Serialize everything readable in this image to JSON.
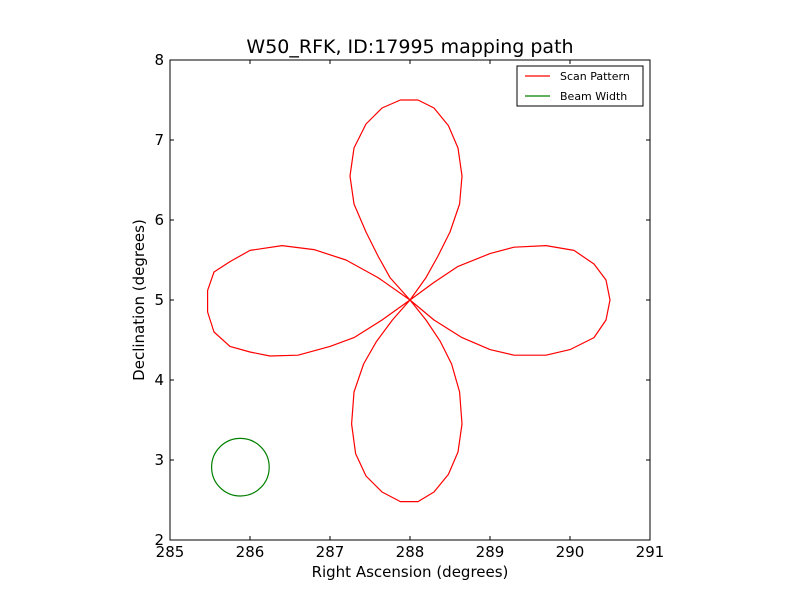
{
  "chart_data": {
    "type": "line",
    "title": "W50_RFK, ID:17995 mapping path",
    "xlabel": "Right Ascension (degrees)",
    "ylabel": "Declination (degrees)",
    "xlim": [
      285,
      291
    ],
    "ylim": [
      2,
      8
    ],
    "x_ticks": [
      "285",
      "286",
      "287",
      "288",
      "289",
      "290",
      "291"
    ],
    "y_ticks": [
      "2",
      "3",
      "4",
      "5",
      "6",
      "7",
      "8"
    ],
    "legend_position": "top-right",
    "legend": [
      {
        "label": "Scan Pattern",
        "color": "#ff0000"
      },
      {
        "label": "Beam Width",
        "color": "#008000"
      }
    ],
    "series": [
      {
        "name": "Scan Pattern",
        "color": "#ff0000",
        "points": [
          [
            288.0,
            5.0
          ],
          [
            287.75,
            5.28
          ],
          [
            287.6,
            5.55
          ],
          [
            287.45,
            5.85
          ],
          [
            287.3,
            6.2
          ],
          [
            287.25,
            6.55
          ],
          [
            287.3,
            6.9
          ],
          [
            287.45,
            7.2
          ],
          [
            287.65,
            7.4
          ],
          [
            287.88,
            7.5
          ],
          [
            288.1,
            7.5
          ],
          [
            288.3,
            7.4
          ],
          [
            288.48,
            7.18
          ],
          [
            288.6,
            6.9
          ],
          [
            288.65,
            6.55
          ],
          [
            288.62,
            6.2
          ],
          [
            288.5,
            5.85
          ],
          [
            288.35,
            5.55
          ],
          [
            288.2,
            5.28
          ],
          [
            288.0,
            5.0
          ],
          [
            288.3,
            5.22
          ],
          [
            288.6,
            5.42
          ],
          [
            289.0,
            5.58
          ],
          [
            289.3,
            5.66
          ],
          [
            289.7,
            5.68
          ],
          [
            290.05,
            5.62
          ],
          [
            290.3,
            5.45
          ],
          [
            290.45,
            5.25
          ],
          [
            290.5,
            5.0
          ],
          [
            290.45,
            4.75
          ],
          [
            290.3,
            4.53
          ],
          [
            290.0,
            4.38
          ],
          [
            289.7,
            4.31
          ],
          [
            289.3,
            4.31
          ],
          [
            289.0,
            4.38
          ],
          [
            288.65,
            4.53
          ],
          [
            288.3,
            4.75
          ],
          [
            288.0,
            5.0
          ],
          [
            288.2,
            4.75
          ],
          [
            288.38,
            4.48
          ],
          [
            288.52,
            4.2
          ],
          [
            288.62,
            3.85
          ],
          [
            288.65,
            3.45
          ],
          [
            288.6,
            3.1
          ],
          [
            288.48,
            2.82
          ],
          [
            288.3,
            2.6
          ],
          [
            288.1,
            2.48
          ],
          [
            287.88,
            2.48
          ],
          [
            287.65,
            2.6
          ],
          [
            287.45,
            2.8
          ],
          [
            287.32,
            3.08
          ],
          [
            287.27,
            3.45
          ],
          [
            287.3,
            3.85
          ],
          [
            287.42,
            4.2
          ],
          [
            287.58,
            4.48
          ],
          [
            287.78,
            4.75
          ],
          [
            288.0,
            5.0
          ],
          [
            287.65,
            4.75
          ],
          [
            287.3,
            4.53
          ],
          [
            287.0,
            4.42
          ],
          [
            286.6,
            4.31
          ],
          [
            286.25,
            4.3
          ],
          [
            286.0,
            4.35
          ],
          [
            285.75,
            4.42
          ],
          [
            285.55,
            4.6
          ],
          [
            285.47,
            4.85
          ],
          [
            285.47,
            5.12
          ],
          [
            285.55,
            5.35
          ],
          [
            285.75,
            5.48
          ],
          [
            286.0,
            5.62
          ],
          [
            286.4,
            5.68
          ],
          [
            286.8,
            5.63
          ],
          [
            287.2,
            5.5
          ],
          [
            287.6,
            5.28
          ],
          [
            288.0,
            5.0
          ]
        ]
      },
      {
        "name": "Beam Width",
        "color": "#008000",
        "shape": "circle",
        "center": [
          285.88,
          2.91
        ],
        "radius": 0.36
      }
    ]
  }
}
